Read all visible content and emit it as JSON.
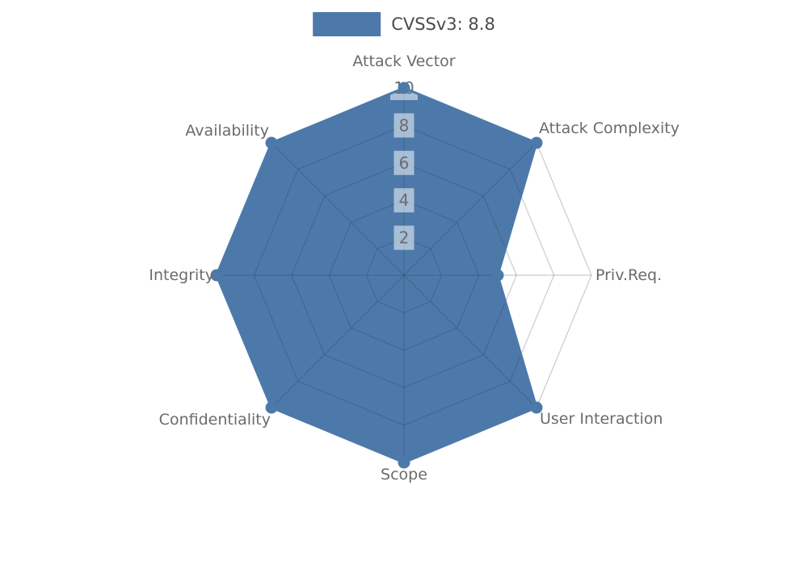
{
  "page": {
    "background_color": "#ffffff"
  },
  "chart_data": {
    "type": "radar",
    "title": "",
    "legend_position": "top-center",
    "axes": [
      "Attack Vector",
      "Attack Complexity",
      "Priv.Req.",
      "User Interaction",
      "Scope",
      "Confidentiality",
      "Integrity",
      "Availability"
    ],
    "axes_order": "clockwise from top",
    "series": [
      {
        "name": "CVSSv3: 8.8",
        "color": "#4d79aa",
        "values": [
          10,
          10,
          5,
          10,
          10,
          10,
          10,
          10
        ]
      }
    ],
    "radial_ticks": [
      2,
      4,
      6,
      8,
      10
    ],
    "rlim": [
      0,
      10
    ],
    "grid": {
      "style": "polygon rings with spokes",
      "rings": 5,
      "line_color": "rgba(40,50,60,0.25)"
    },
    "tick_label_box_color": "rgba(255,255,255,0.52)",
    "axis_label_color": "#6b6b6b",
    "tick_label_color": "#666c76",
    "legend_text_color": "#4b4b4b"
  }
}
